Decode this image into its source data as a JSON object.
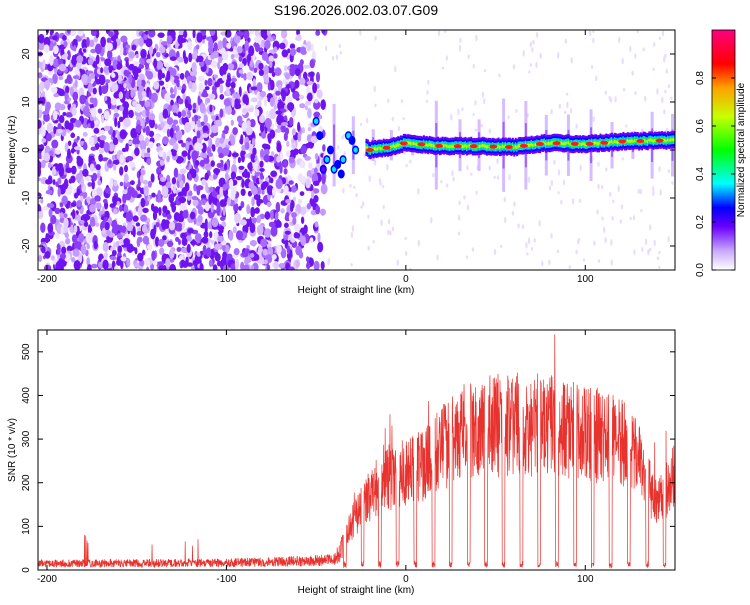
{
  "title": "S196.2026.002.03.07.G09",
  "chart_data": [
    {
      "type": "heatmap",
      "xlabel": "Height of straight line (km)",
      "ylabel": "Frequency (Hz)",
      "xlim": [
        -205,
        150
      ],
      "ylim": [
        -25,
        25
      ],
      "xticks": [
        -200,
        -100,
        0,
        100
      ],
      "yticks": [
        -20,
        -10,
        0,
        10,
        20
      ],
      "colorbar": {
        "label": "Normalized spectral amplitude",
        "range": [
          0,
          1
        ],
        "ticks": [
          "0.0",
          "0.2",
          "0.4",
          "0.6",
          "0.8"
        ]
      },
      "signal_trace": [
        {
          "x": -50,
          "y": 6
        },
        {
          "x": -45,
          "y": 2
        },
        {
          "x": -40,
          "y": -4
        },
        {
          "x": -35,
          "y": -2
        },
        {
          "x": -30,
          "y": 2
        },
        {
          "x": -25,
          "y": 1
        },
        {
          "x": -20,
          "y": 0
        },
        {
          "x": -10,
          "y": 0.5
        },
        {
          "x": 0,
          "y": 1.5
        },
        {
          "x": 20,
          "y": 0.8
        },
        {
          "x": 40,
          "y": 0.8
        },
        {
          "x": 60,
          "y": 0.6
        },
        {
          "x": 80,
          "y": 1.5
        },
        {
          "x": 100,
          "y": 1.2
        },
        {
          "x": 120,
          "y": 1.8
        },
        {
          "x": 150,
          "y": 2
        }
      ]
    },
    {
      "type": "line",
      "xlabel": "Height of straight line (km)",
      "ylabel": "SNR (10 * v/v)",
      "xlim": [
        -205,
        150
      ],
      "ylim": [
        0,
        550
      ],
      "xticks": [
        -200,
        -100,
        0,
        100
      ],
      "yticks": [
        0,
        100,
        200,
        300,
        400,
        500
      ],
      "series": [
        {
          "name": "SNR",
          "color": "#e8322e",
          "envelope": [
            {
              "x": -205,
              "y": 20
            },
            {
              "x": -100,
              "y": 22
            },
            {
              "x": -40,
              "y": 30
            },
            {
              "x": -30,
              "y": 110
            },
            {
              "x": -20,
              "y": 180
            },
            {
              "x": -10,
              "y": 220
            },
            {
              "x": 0,
              "y": 230
            },
            {
              "x": 10,
              "y": 250
            },
            {
              "x": 20,
              "y": 285
            },
            {
              "x": 30,
              "y": 320
            },
            {
              "x": 40,
              "y": 335
            },
            {
              "x": 50,
              "y": 340
            },
            {
              "x": 60,
              "y": 345
            },
            {
              "x": 70,
              "y": 345
            },
            {
              "x": 80,
              "y": 340
            },
            {
              "x": 90,
              "y": 330
            },
            {
              "x": 100,
              "y": 320
            },
            {
              "x": 110,
              "y": 315
            },
            {
              "x": 120,
              "y": 300
            },
            {
              "x": 130,
              "y": 255
            },
            {
              "x": 140,
              "y": 150
            },
            {
              "x": 150,
              "y": 230
            }
          ],
          "peak": {
            "x": 83,
            "y": 540
          }
        }
      ]
    }
  ]
}
